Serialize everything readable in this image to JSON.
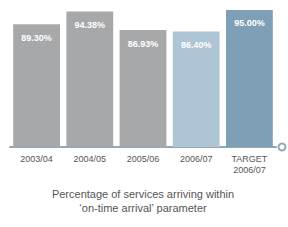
{
  "chart_data": {
    "type": "bar",
    "categories": [
      "2003/04",
      "2004/05",
      "2005/06",
      "2006/07",
      "TARGET\n2006/07"
    ],
    "values": [
      89.3,
      94.38,
      86.93,
      86.4,
      95.0
    ],
    "value_labels": [
      "89.30%",
      "94.38%",
      "86.93%",
      "86.40%",
      "95.00%"
    ],
    "colors": [
      "#a7a8aa",
      "#a7a8aa",
      "#a7a8aa",
      "#aec5d6",
      "#7f9fb6"
    ],
    "xlabel": "Percentage of services arriving within\n‘on-time arrival’ parameter",
    "ylim": [
      40,
      97
    ],
    "data_labels": true,
    "tick_labels": "x",
    "grid": false
  }
}
